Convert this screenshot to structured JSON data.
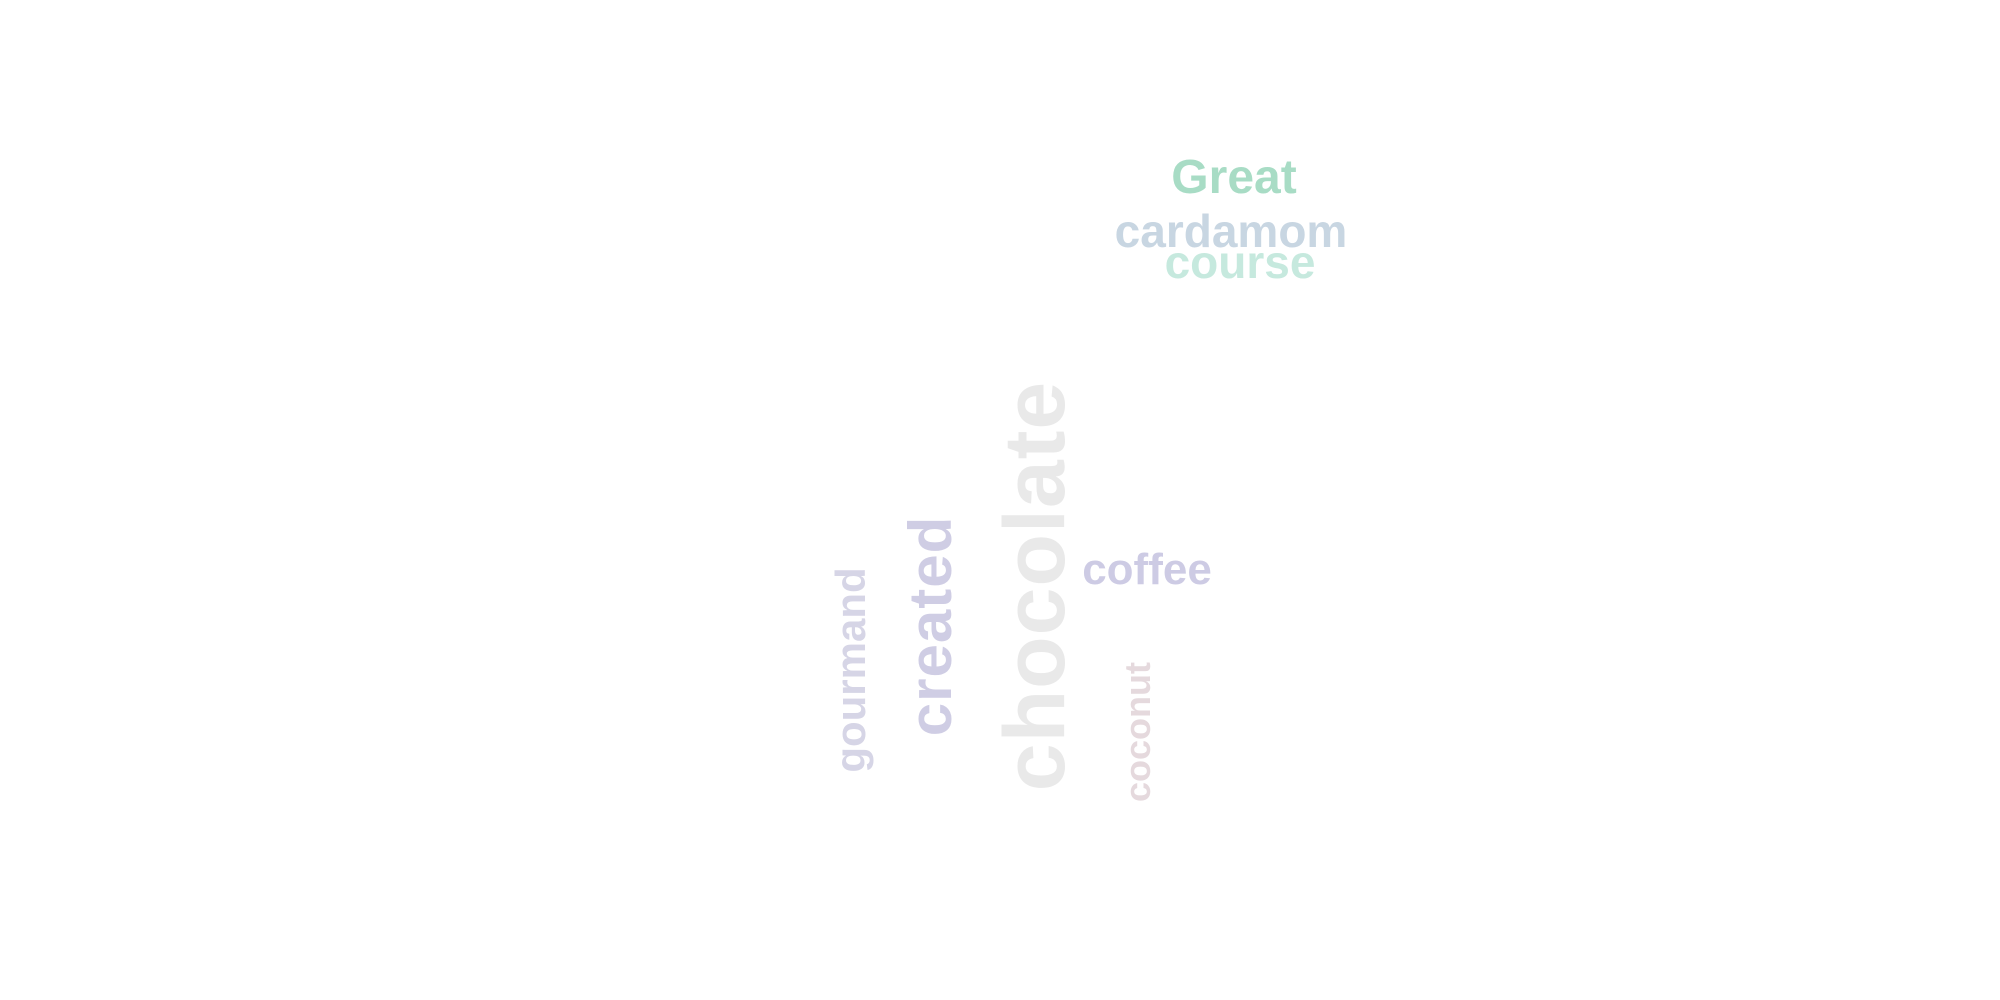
{
  "words": {
    "chocolate": {
      "text": "chocolate",
      "color": "#e9e9e9"
    },
    "created": {
      "text": "created",
      "color": "#cfcde4"
    },
    "gourmand": {
      "text": "gourmand",
      "color": "#d6d5e6"
    },
    "coconut": {
      "text": "coconut",
      "color": "#e5d9dd"
    },
    "coffee": {
      "text": "coffee",
      "color": "#cdcbe4"
    },
    "great": {
      "text": "Great",
      "color": "#a8dcc5"
    },
    "cardamom": {
      "text": "cardamom",
      "color": "#c8d6e2"
    },
    "course": {
      "text": "course",
      "color": "#c6e9de"
    }
  }
}
